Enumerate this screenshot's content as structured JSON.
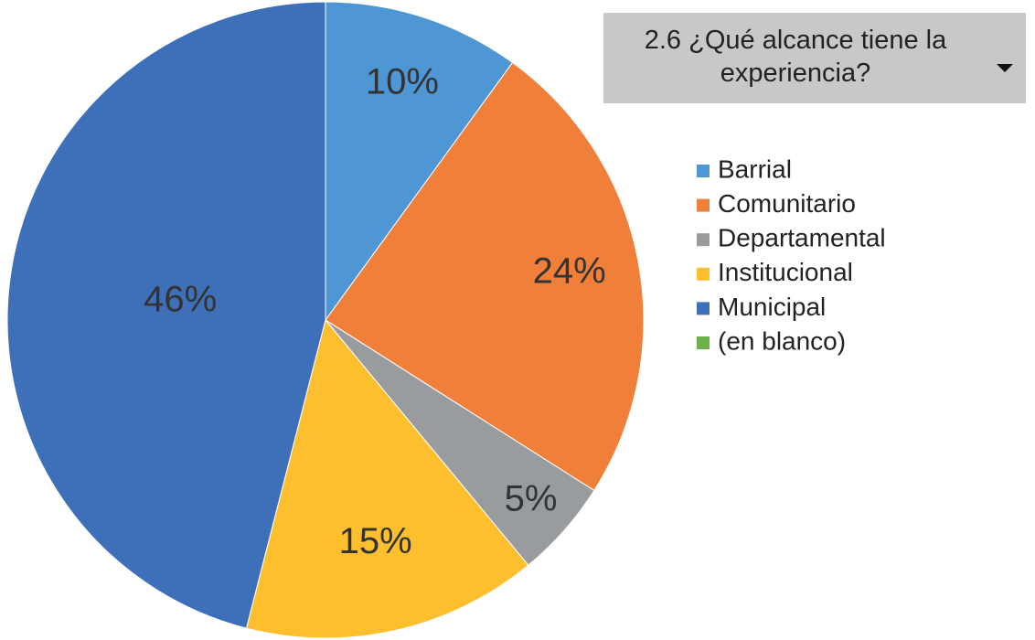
{
  "chart_data": {
    "type": "pie",
    "title": "2.6 ¿Qué alcance tiene la experiencia?",
    "categories": [
      "Barrial",
      "Comunitario",
      "Departamental",
      "Institucional",
      "Municipal",
      "(en blanco)"
    ],
    "values": [
      10,
      24,
      5,
      15,
      46,
      0
    ],
    "value_labels": [
      "10%",
      "24%",
      "5%",
      "15%",
      "46%",
      null
    ],
    "colors": [
      "#4f97d4",
      "#f07f3a",
      "#999c9e",
      "#fdbf2d",
      "#3e70b9",
      "#6cb14c"
    ],
    "legend": "right"
  }
}
